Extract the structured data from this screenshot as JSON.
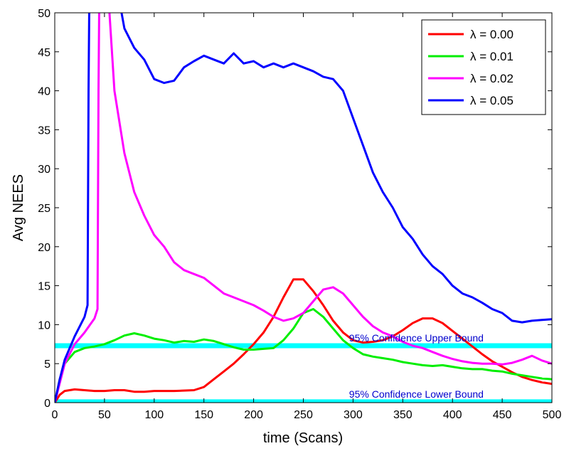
{
  "chart_data": {
    "type": "line",
    "xlabel": "time (Scans)",
    "ylabel": "Avg NEES",
    "xlim": [
      0,
      500
    ],
    "ylim": [
      0,
      50
    ],
    "xticks": [
      "0",
      "50",
      "100",
      "150",
      "200",
      "250",
      "300",
      "350",
      "400",
      "450",
      "500"
    ],
    "yticks": [
      "0",
      "5",
      "10",
      "15",
      "20",
      "25",
      "30",
      "35",
      "40",
      "45",
      "50"
    ],
    "grid": false,
    "legend_position": "top-right",
    "series": [
      {
        "name": "λ = 0.00",
        "color": "#ff0000",
        "x": [
          0,
          5,
          10,
          20,
          30,
          40,
          50,
          60,
          70,
          80,
          90,
          100,
          120,
          140,
          150,
          160,
          170,
          180,
          190,
          200,
          210,
          220,
          230,
          240,
          250,
          260,
          270,
          280,
          290,
          300,
          310,
          320,
          330,
          340,
          350,
          360,
          370,
          380,
          390,
          400,
          410,
          420,
          430,
          440,
          450,
          460,
          470,
          480,
          490,
          500
        ],
        "y": [
          0,
          1.0,
          1.5,
          1.7,
          1.6,
          1.5,
          1.5,
          1.6,
          1.6,
          1.4,
          1.4,
          1.5,
          1.5,
          1.6,
          2.0,
          3.0,
          4.0,
          5.0,
          6.2,
          7.5,
          9.0,
          11.0,
          13.5,
          15.8,
          15.8,
          14.3,
          12.5,
          10.5,
          9.0,
          8.0,
          7.7,
          7.8,
          8.0,
          8.5,
          9.3,
          10.2,
          10.8,
          10.8,
          10.2,
          9.2,
          8.2,
          7.2,
          6.2,
          5.3,
          4.6,
          3.9,
          3.3,
          2.9,
          2.6,
          2.4
        ]
      },
      {
        "name": "λ = 0.01",
        "color": "#00ee00",
        "x": [
          0,
          5,
          10,
          20,
          30,
          40,
          50,
          60,
          70,
          80,
          90,
          100,
          110,
          120,
          130,
          140,
          150,
          160,
          170,
          180,
          190,
          200,
          210,
          220,
          230,
          240,
          250,
          260,
          270,
          280,
          290,
          300,
          310,
          320,
          330,
          340,
          350,
          360,
          370,
          380,
          390,
          400,
          410,
          420,
          430,
          440,
          450,
          460,
          470,
          480,
          490,
          500
        ],
        "y": [
          0,
          3.0,
          5.0,
          6.5,
          7.0,
          7.2,
          7.5,
          8.0,
          8.6,
          8.9,
          8.6,
          8.2,
          8.0,
          7.7,
          7.9,
          7.8,
          8.1,
          7.9,
          7.5,
          7.1,
          6.8,
          6.8,
          6.9,
          7.0,
          8.0,
          9.5,
          11.5,
          12.0,
          11.0,
          9.5,
          8.0,
          7.0,
          6.2,
          5.9,
          5.7,
          5.5,
          5.2,
          5.0,
          4.8,
          4.7,
          4.8,
          4.6,
          4.4,
          4.3,
          4.3,
          4.1,
          4.0,
          3.7,
          3.5,
          3.3,
          3.1,
          3.0
        ]
      },
      {
        "name": "λ = 0.02",
        "color": "#ff00ff",
        "x": [
          0,
          5,
          10,
          20,
          30,
          40,
          43,
          44,
          45,
          50,
          55,
          60,
          70,
          80,
          90,
          100,
          110,
          120,
          130,
          140,
          150,
          160,
          170,
          180,
          190,
          200,
          210,
          220,
          230,
          240,
          250,
          260,
          270,
          280,
          290,
          300,
          310,
          320,
          330,
          340,
          350,
          360,
          370,
          380,
          390,
          400,
          410,
          420,
          430,
          440,
          450,
          460,
          470,
          480,
          490,
          500
        ],
        "y": [
          0,
          2.5,
          5.0,
          7.5,
          9.0,
          10.8,
          12.0,
          40,
          55,
          55,
          50,
          40,
          32,
          27,
          24,
          21.5,
          20.0,
          18.0,
          17.0,
          16.5,
          16.0,
          15.0,
          14.0,
          13.5,
          13.0,
          12.5,
          11.8,
          11.0,
          10.5,
          10.8,
          11.5,
          13.0,
          14.5,
          14.8,
          14.0,
          12.5,
          11.0,
          9.8,
          9.0,
          8.5,
          7.8,
          7.3,
          7.0,
          6.5,
          6.0,
          5.6,
          5.3,
          5.1,
          5.0,
          5.0,
          4.9,
          5.1,
          5.5,
          6.0,
          5.4,
          5.0
        ]
      },
      {
        "name": "λ = 0.05",
        "color": "#0000ff",
        "x": [
          0,
          5,
          10,
          20,
          30,
          33,
          34,
          35,
          60,
          70,
          80,
          90,
          100,
          110,
          120,
          130,
          140,
          150,
          160,
          170,
          180,
          190,
          200,
          210,
          220,
          230,
          240,
          250,
          260,
          270,
          280,
          290,
          300,
          310,
          320,
          330,
          340,
          350,
          360,
          370,
          380,
          390,
          400,
          410,
          420,
          430,
          440,
          450,
          460,
          470,
          480,
          490,
          500
        ],
        "y": [
          0,
          3.0,
          5.5,
          8.5,
          11.0,
          12.5,
          40,
          55,
          55,
          48,
          45.5,
          44,
          41.5,
          41.0,
          41.3,
          43.0,
          43.8,
          44.5,
          44.0,
          43.5,
          44.8,
          43.5,
          43.8,
          43.0,
          43.5,
          43.0,
          43.5,
          43.0,
          42.5,
          41.8,
          41.5,
          40.0,
          36.5,
          33.0,
          29.5,
          27.0,
          25.0,
          22.5,
          21.0,
          19.0,
          17.5,
          16.5,
          15.0,
          14.0,
          13.5,
          12.8,
          12.0,
          11.5,
          10.5,
          10.3,
          10.5,
          10.6,
          10.7
        ]
      }
    ],
    "reference_lines": [
      {
        "label": "95% Confidence Upper Bound",
        "y": 7.3,
        "color": "#00ffff"
      },
      {
        "label": "95% Confidence Lower Bound",
        "y": 0.1,
        "color": "#00ffff"
      }
    ],
    "annotation_color": "#0000cc"
  }
}
